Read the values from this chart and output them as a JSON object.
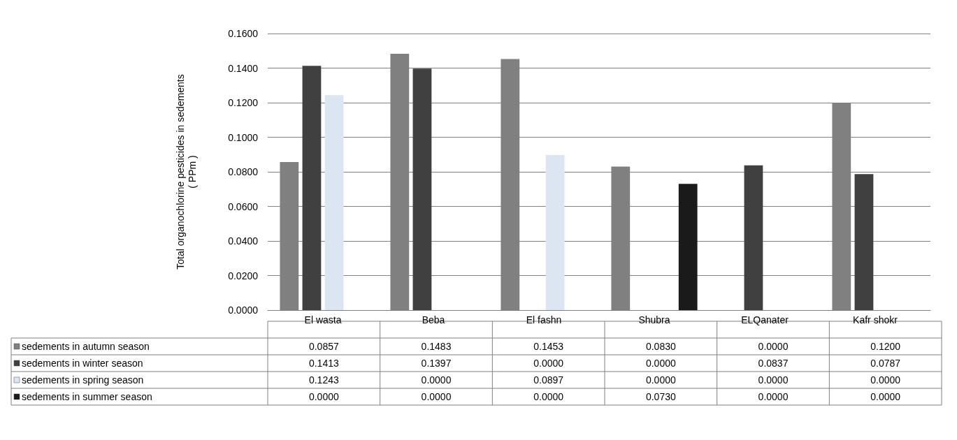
{
  "chart_data": {
    "type": "bar",
    "ylabel": "Total organochlorine pesticides in sedements\n( PPm )",
    "categories": [
      "El wasta",
      "Beba",
      "El fashn",
      "Shubra",
      "ELQanater",
      "Kafr shokr"
    ],
    "series": [
      {
        "name": "sedements in autumn season",
        "color": "#808080",
        "values": [
          0.0857,
          0.1483,
          0.1453,
          0.083,
          0,
          0.12
        ],
        "value_labels": [
          "0.0857",
          "0.1483",
          "0.1453",
          "0.0830",
          "0.0000",
          "0.1200"
        ]
      },
      {
        "name": "sedements in winter season",
        "color": "#404040",
        "values": [
          0.1413,
          0.1397,
          0,
          0,
          0.0837,
          0.0787
        ],
        "value_labels": [
          "0.1413",
          "0.1397",
          "0.0000",
          "0.0000",
          "0.0837",
          "0.0787"
        ]
      },
      {
        "name": "sedements in spring season",
        "color": "#dce6f2",
        "values": [
          0.1243,
          0,
          0.0897,
          0,
          0,
          0
        ],
        "value_labels": [
          "0.1243",
          "0.0000",
          "0.0897",
          "0.0000",
          "0.0000",
          "0.0000"
        ]
      },
      {
        "name": "sedements in summer season",
        "color": "#1a1a1a",
        "values": [
          0,
          0,
          0,
          0.073,
          0,
          0
        ],
        "value_labels": [
          "0.0000",
          "0.0000",
          "0.0000",
          "0.0730",
          "0.0000",
          "0.0000"
        ]
      }
    ],
    "ylim": [
      0,
      0.16
    ],
    "yticks": [
      {
        "value": 0,
        "label": "0.0000"
      },
      {
        "value": 0.02,
        "label": "0.0200"
      },
      {
        "value": 0.04,
        "label": "0.0400"
      },
      {
        "value": 0.06,
        "label": "0.0600"
      },
      {
        "value": 0.08,
        "label": "0.0800"
      },
      {
        "value": 0.1,
        "label": "0.1000"
      },
      {
        "value": 0.12,
        "label": "0.1200"
      },
      {
        "value": 0.14,
        "label": "0.1400"
      },
      {
        "value": 0.16,
        "label": "0.1600"
      }
    ],
    "grid": "y",
    "legend": "bottom"
  }
}
